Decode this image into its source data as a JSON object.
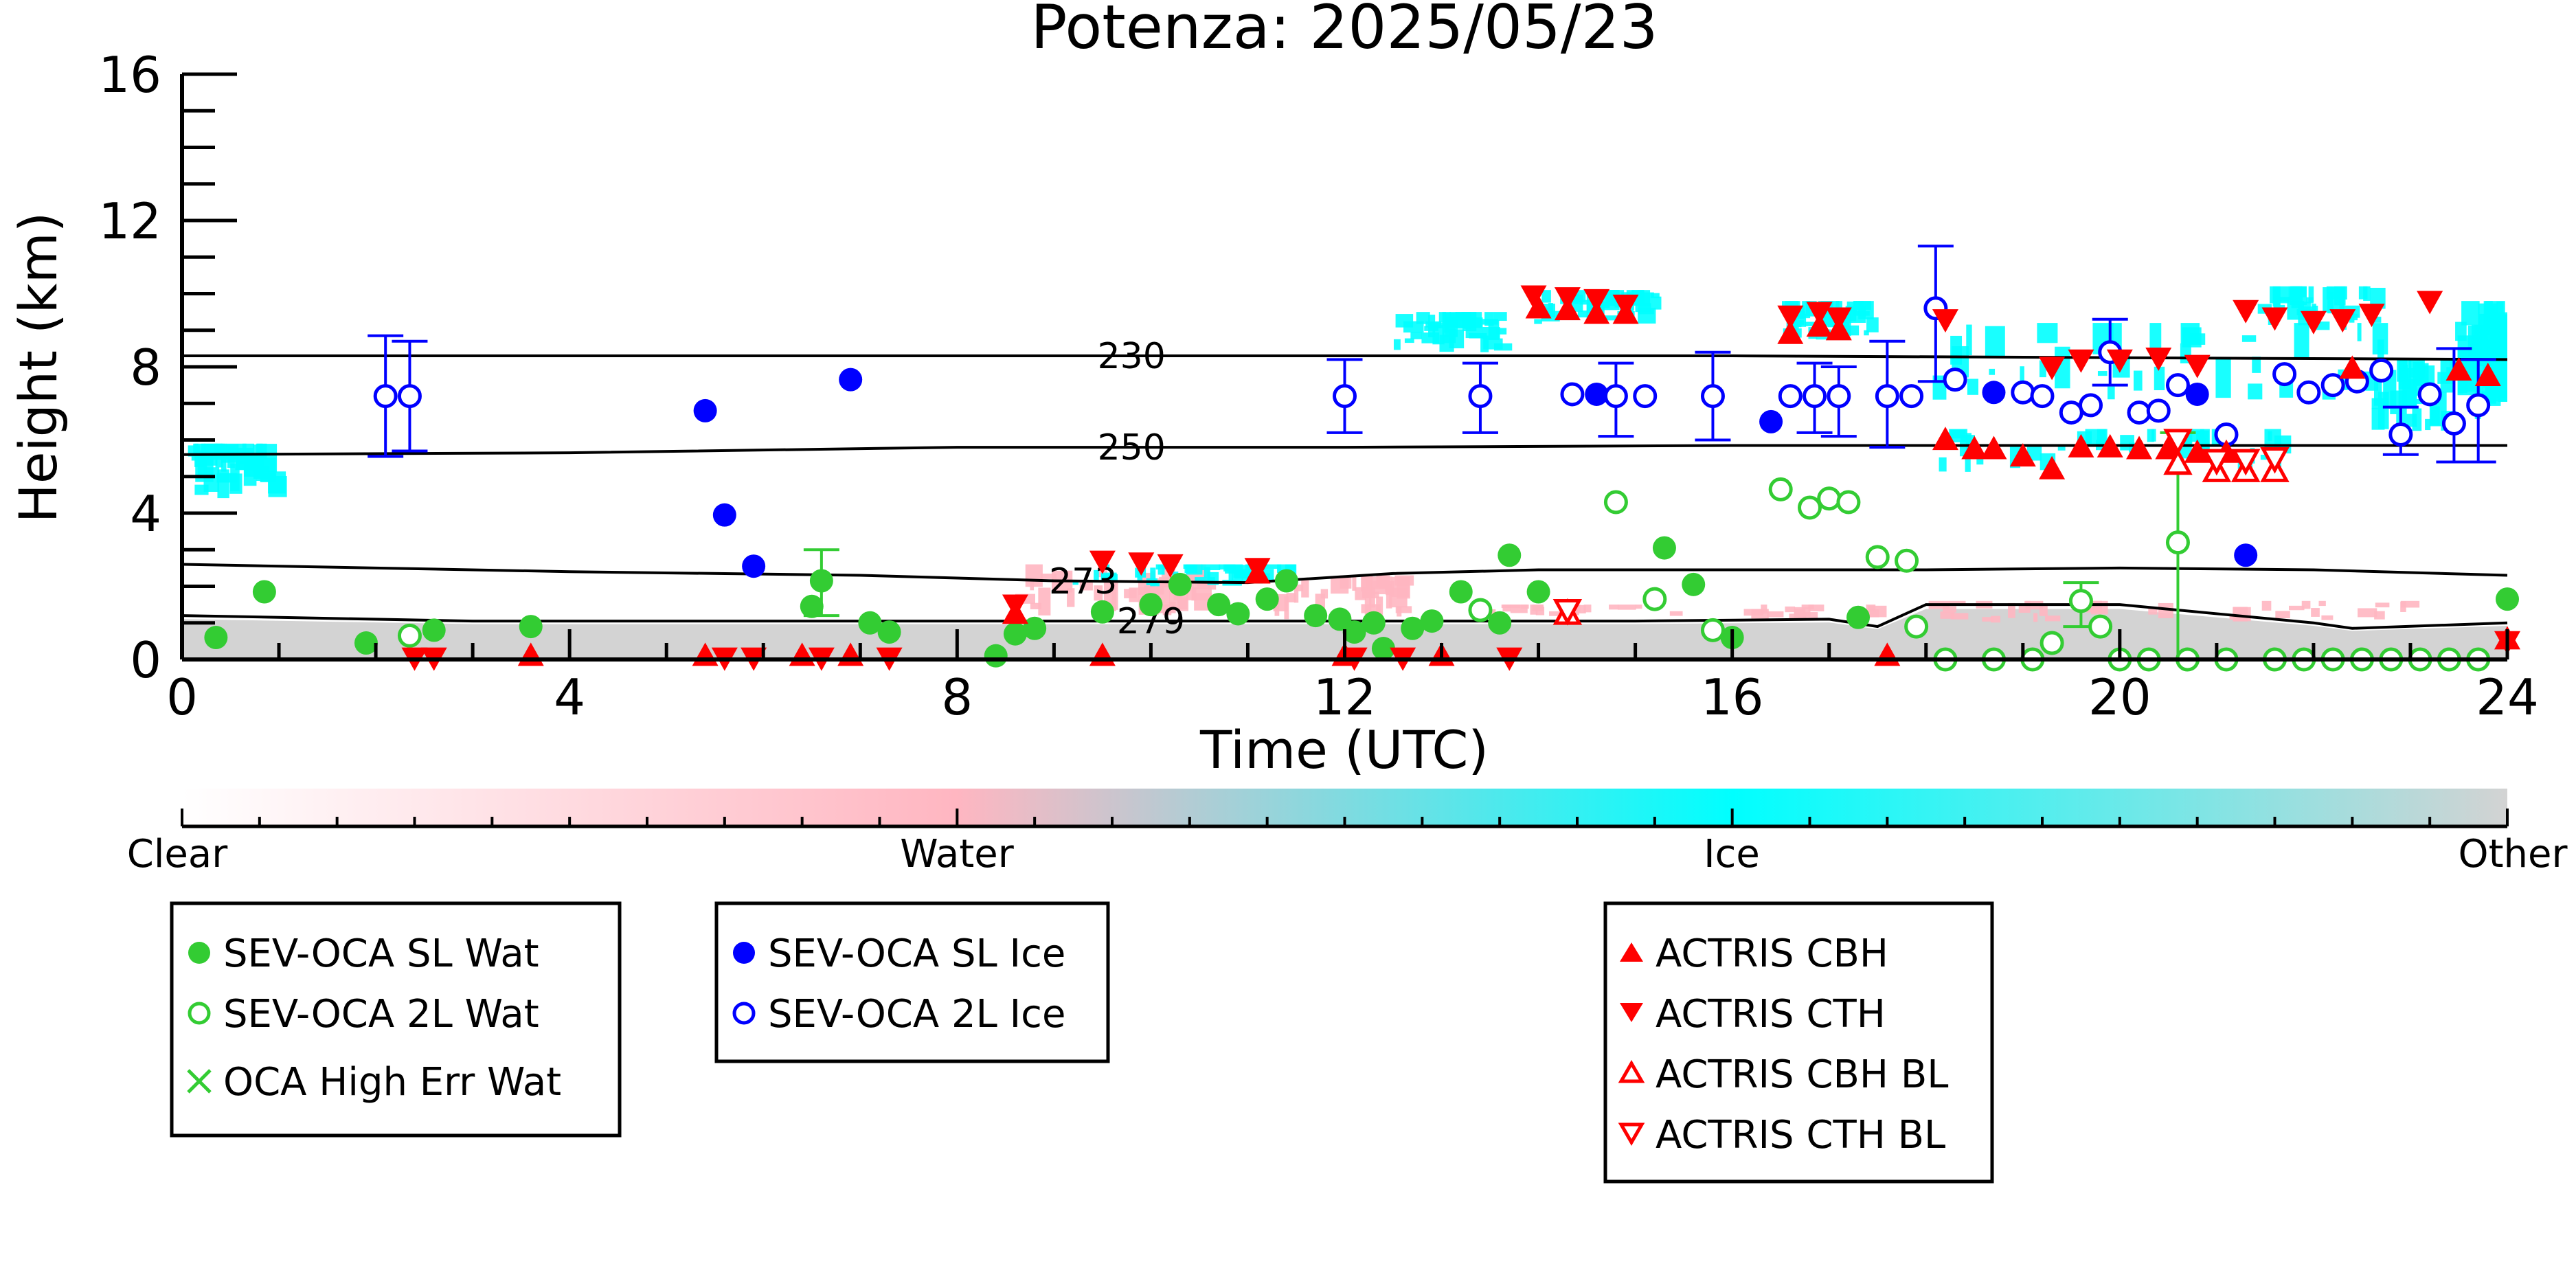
{
  "chart_data": {
    "type": "scatter",
    "title": "Potenza: 2025/05/23",
    "xlabel": "Time (UTC)",
    "ylabel": "Height (km)",
    "xlim": [
      0,
      24
    ],
    "ylim": [
      0,
      16
    ],
    "xticks": [
      "0",
      "4",
      "8",
      "12",
      "16",
      "20",
      "24"
    ],
    "yticks": [
      "0",
      "4",
      "8",
      "12",
      "16"
    ],
    "grid": false,
    "colors": {
      "water": "#ffb6c1",
      "ice": "#00ffff",
      "other": "#d3d3d3",
      "sev_water": "#33cc33",
      "sev_ice": "#0000ff",
      "actris": "#ff0000"
    },
    "colorbar": {
      "labels": [
        "Clear",
        "Water",
        "Ice",
        "Other"
      ],
      "stops": [
        0,
        0.333,
        0.667,
        1
      ]
    },
    "isotherms": [
      {
        "label": "230",
        "points": [
          [
            0,
            8.3
          ],
          [
            6,
            8.3
          ],
          [
            12,
            8.3
          ],
          [
            16,
            8.3
          ],
          [
            20,
            8.25
          ],
          [
            24,
            8.2
          ]
        ]
      },
      {
        "label": "250",
        "points": [
          [
            0,
            5.6
          ],
          [
            4,
            5.65
          ],
          [
            8,
            5.8
          ],
          [
            12,
            5.8
          ],
          [
            16,
            5.85
          ],
          [
            20,
            5.85
          ],
          [
            24,
            5.85
          ]
        ]
      },
      {
        "label": "273",
        "points": [
          [
            0,
            2.6
          ],
          [
            2,
            2.5
          ],
          [
            4,
            2.4
          ],
          [
            7,
            2.3
          ],
          [
            9,
            2.15
          ],
          [
            11,
            2.1
          ],
          [
            12.5,
            2.35
          ],
          [
            14,
            2.45
          ],
          [
            16,
            2.45
          ],
          [
            18,
            2.45
          ],
          [
            20,
            2.5
          ],
          [
            22,
            2.45
          ],
          [
            24,
            2.3
          ]
        ]
      },
      {
        "label": "279",
        "points": [
          [
            0,
            1.2
          ],
          [
            3,
            1.05
          ],
          [
            6,
            1.05
          ],
          [
            9,
            1.05
          ],
          [
            11,
            1.05
          ],
          [
            13,
            1.05
          ],
          [
            15,
            1.05
          ],
          [
            17,
            1.1
          ],
          [
            17.5,
            0.9
          ],
          [
            18,
            1.5
          ],
          [
            20,
            1.5
          ],
          [
            22,
            1.0
          ],
          [
            22.4,
            0.85
          ],
          [
            24,
            1.0
          ]
        ]
      }
    ],
    "series": [
      {
        "name": "SEV-OCA SL Wat",
        "marker": "filled-circle",
        "color": "#33cc33",
        "points": [
          [
            0.35,
            0.6
          ],
          [
            0.85,
            1.85
          ],
          [
            1.9,
            0.45
          ],
          [
            2.6,
            0.8
          ],
          [
            3.6,
            0.9
          ],
          [
            6.5,
            1.45
          ],
          [
            6.6,
            2.15
          ],
          [
            7.1,
            1.0
          ],
          [
            7.3,
            0.75
          ],
          [
            8.4,
            0.1
          ],
          [
            8.6,
            0.7
          ],
          [
            8.8,
            0.85
          ],
          [
            9.5,
            1.3
          ],
          [
            10,
            1.5
          ],
          [
            10.3,
            2.05
          ],
          [
            10.7,
            1.5
          ],
          [
            10.9,
            1.25
          ],
          [
            11.2,
            1.65
          ],
          [
            11.4,
            2.15
          ],
          [
            11.7,
            1.2
          ],
          [
            11.95,
            1.1
          ],
          [
            12.1,
            0.75
          ],
          [
            12.3,
            1.0
          ],
          [
            12.4,
            0.3
          ],
          [
            12.7,
            0.85
          ],
          [
            12.9,
            1.05
          ],
          [
            13.2,
            1.85
          ],
          [
            13.6,
            1.0
          ],
          [
            13.7,
            2.85
          ],
          [
            14.0,
            1.85
          ],
          [
            15.3,
            3.05
          ],
          [
            15.6,
            2.05
          ],
          [
            16.0,
            0.6
          ],
          [
            17.3,
            1.15
          ],
          [
            24,
            1.65
          ]
        ]
      },
      {
        "name": "SEV-OCA 2L Wat",
        "marker": "open-circle",
        "color": "#33cc33",
        "points": [
          [
            2.35,
            0.65
          ],
          [
            13.4,
            1.35
          ],
          [
            14.8,
            4.3
          ],
          [
            15.2,
            1.65
          ],
          [
            15.8,
            0.8
          ],
          [
            16.5,
            4.65
          ],
          [
            16.8,
            4.15
          ],
          [
            17.0,
            4.4
          ],
          [
            17.2,
            4.3
          ],
          [
            17.5,
            2.8
          ],
          [
            17.8,
            2.7
          ],
          [
            17.9,
            0.9
          ],
          [
            18.2,
            0.0
          ],
          [
            18.7,
            0.0
          ],
          [
            19.1,
            0.0
          ],
          [
            19.3,
            0.45
          ],
          [
            19.6,
            1.6
          ],
          [
            19.8,
            0.9
          ],
          [
            20.0,
            0.0
          ],
          [
            20.3,
            0.0
          ],
          [
            20.6,
            3.2
          ],
          [
            20.7,
            0.0
          ],
          [
            21.1,
            0.0
          ],
          [
            21.6,
            0.0
          ],
          [
            21.9,
            0.0
          ],
          [
            22.2,
            0.0
          ],
          [
            22.5,
            0.0
          ],
          [
            22.8,
            0.0
          ],
          [
            23.1,
            0.0
          ],
          [
            23.4,
            0.0
          ],
          [
            23.7,
            0.0
          ]
        ]
      },
      {
        "name": "OCA High Err Wat",
        "marker": "x",
        "color": "#33cc33",
        "points": []
      },
      {
        "name": "SEV-OCA SL Ice",
        "marker": "filled-circle",
        "color": "#0000ff",
        "points": [
          [
            5.4,
            6.8
          ],
          [
            5.6,
            3.95
          ],
          [
            5.9,
            2.55
          ],
          [
            6.9,
            7.65
          ],
          [
            14.6,
            7.25
          ],
          [
            16.4,
            6.5
          ],
          [
            18.7,
            7.3
          ],
          [
            20.8,
            7.25
          ],
          [
            21.3,
            2.85
          ]
        ]
      },
      {
        "name": "SEV-OCA 2L Ice",
        "marker": "open-circle",
        "color": "#0000ff",
        "points": [
          [
            2.1,
            7.2
          ],
          [
            2.35,
            7.2
          ],
          [
            12.0,
            7.2
          ],
          [
            13.4,
            7.2
          ],
          [
            14.35,
            7.25
          ],
          [
            14.8,
            7.2
          ],
          [
            15.1,
            7.2
          ],
          [
            15.8,
            7.2
          ],
          [
            16.6,
            7.2
          ],
          [
            16.85,
            7.2
          ],
          [
            17.1,
            7.2
          ],
          [
            17.6,
            7.2
          ],
          [
            17.85,
            7.2
          ],
          [
            18.1,
            9.6
          ],
          [
            18.3,
            7.65
          ],
          [
            19.0,
            7.3
          ],
          [
            19.2,
            7.2
          ],
          [
            19.5,
            6.75
          ],
          [
            19.7,
            6.95
          ],
          [
            19.9,
            8.4
          ],
          [
            20.2,
            6.75
          ],
          [
            20.4,
            6.8
          ],
          [
            20.6,
            7.5
          ],
          [
            21.1,
            6.15
          ],
          [
            21.7,
            7.8
          ],
          [
            21.95,
            7.3
          ],
          [
            22.2,
            7.5
          ],
          [
            22.45,
            7.6
          ],
          [
            22.7,
            7.9
          ],
          [
            22.9,
            6.15
          ],
          [
            23.2,
            7.25
          ],
          [
            23.45,
            6.45
          ],
          [
            23.7,
            6.95
          ]
        ]
      },
      {
        "name": "ACTRIS CBH",
        "marker": "filled-triangle-up",
        "color": "#ff0000",
        "points": [
          [
            8.6,
            1.2
          ],
          [
            11.1,
            2.3
          ],
          [
            14.0,
            9.55
          ],
          [
            14.3,
            9.5
          ],
          [
            14.6,
            9.4
          ],
          [
            14.9,
            9.4
          ],
          [
            16.6,
            8.85
          ],
          [
            16.9,
            9.05
          ],
          [
            17.1,
            8.95
          ],
          [
            18.2,
            5.95
          ],
          [
            18.5,
            5.7
          ],
          [
            18.7,
            5.7
          ],
          [
            19.0,
            5.5
          ],
          [
            19.3,
            5.15
          ],
          [
            19.6,
            5.75
          ],
          [
            19.9,
            5.75
          ],
          [
            20.2,
            5.7
          ],
          [
            20.5,
            5.7
          ],
          [
            20.8,
            5.6
          ],
          [
            21.1,
            5.6
          ],
          [
            22.4,
            7.9
          ],
          [
            23.5,
            7.85
          ],
          [
            23.8,
            7.7
          ],
          [
            24.0,
            0.5
          ],
          [
            3.6,
            0.05
          ],
          [
            5.4,
            0.05
          ],
          [
            6.4,
            0.05
          ],
          [
            6.9,
            0.05
          ],
          [
            9.5,
            0.05
          ],
          [
            12.0,
            0.05
          ],
          [
            13.0,
            0.05
          ],
          [
            17.6,
            0.05
          ]
        ]
      },
      {
        "name": "ACTRIS CTH",
        "marker": "filled-triangle-down",
        "color": "#ff0000",
        "points": [
          [
            8.6,
            1.55
          ],
          [
            9.5,
            2.75
          ],
          [
            9.9,
            2.7
          ],
          [
            10.2,
            2.65
          ],
          [
            11.1,
            2.55
          ],
          [
            13.95,
            10.0
          ],
          [
            14.3,
            9.95
          ],
          [
            14.6,
            9.9
          ],
          [
            14.9,
            9.75
          ],
          [
            16.6,
            9.45
          ],
          [
            16.9,
            9.55
          ],
          [
            17.1,
            9.4
          ],
          [
            18.2,
            9.35
          ],
          [
            19.3,
            8.05
          ],
          [
            19.6,
            8.25
          ],
          [
            20.0,
            8.25
          ],
          [
            20.4,
            8.3
          ],
          [
            20.8,
            8.1
          ],
          [
            21.3,
            9.6
          ],
          [
            21.6,
            9.4
          ],
          [
            22.0,
            9.3
          ],
          [
            22.3,
            9.35
          ],
          [
            22.6,
            9.5
          ],
          [
            23.2,
            9.85
          ],
          [
            24.0,
            0.55
          ],
          [
            2.4,
            0.1
          ],
          [
            2.6,
            0.1
          ],
          [
            5.6,
            0.1
          ],
          [
            5.9,
            0.1
          ],
          [
            6.6,
            0.1
          ],
          [
            7.3,
            0.1
          ],
          [
            12.1,
            0.1
          ],
          [
            12.6,
            0.1
          ],
          [
            13.7,
            0.1
          ]
        ]
      },
      {
        "name": "ACTRIS CBH BL",
        "marker": "open-triangle-up",
        "color": "#ff0000",
        "points": [
          [
            14.3,
            1.2
          ],
          [
            20.6,
            5.3
          ],
          [
            21.0,
            5.1
          ],
          [
            21.3,
            5.1
          ],
          [
            21.6,
            5.1
          ]
        ]
      },
      {
        "name": "ACTRIS CTH BL",
        "marker": "open-triangle-down",
        "color": "#ff0000",
        "points": [
          [
            14.3,
            1.4
          ],
          [
            20.6,
            6.05
          ],
          [
            21.0,
            5.5
          ],
          [
            21.3,
            5.5
          ],
          [
            21.6,
            5.55
          ]
        ]
      }
    ],
    "error_bars": [
      {
        "x": 2.1,
        "lo": 5.55,
        "hi": 8.85,
        "color": "#0000ff"
      },
      {
        "x": 2.35,
        "lo": 5.7,
        "hi": 8.7,
        "color": "#0000ff"
      },
      {
        "x": 12.0,
        "lo": 6.2,
        "hi": 8.2,
        "color": "#0000ff"
      },
      {
        "x": 13.4,
        "lo": 6.2,
        "hi": 8.1,
        "color": "#0000ff"
      },
      {
        "x": 14.8,
        "lo": 6.1,
        "hi": 8.1,
        "color": "#0000ff"
      },
      {
        "x": 15.8,
        "lo": 6.0,
        "hi": 8.4,
        "color": "#0000ff"
      },
      {
        "x": 16.85,
        "lo": 6.2,
        "hi": 8.1,
        "color": "#0000ff"
      },
      {
        "x": 17.1,
        "lo": 6.1,
        "hi": 8.0,
        "color": "#0000ff"
      },
      {
        "x": 17.6,
        "lo": 5.8,
        "hi": 8.7,
        "color": "#0000ff"
      },
      {
        "x": 18.1,
        "lo": 7.6,
        "hi": 11.3,
        "color": "#0000ff"
      },
      {
        "x": 19.9,
        "lo": 7.5,
        "hi": 9.3,
        "color": "#0000ff"
      },
      {
        "x": 22.9,
        "lo": 5.6,
        "hi": 6.9,
        "color": "#0000ff"
      },
      {
        "x": 23.45,
        "lo": 5.4,
        "hi": 8.5,
        "color": "#0000ff"
      },
      {
        "x": 23.7,
        "lo": 5.4,
        "hi": 8.2,
        "color": "#0000ff"
      },
      {
        "x": 6.6,
        "lo": 1.2,
        "hi": 3.0,
        "color": "#33cc33"
      },
      {
        "x": 19.6,
        "lo": 0.9,
        "hi": 2.1,
        "color": "#33cc33"
      },
      {
        "x": 20.6,
        "lo": 0.0,
        "hi": 6.2,
        "color": "#33cc33"
      }
    ],
    "legends": [
      {
        "entries": [
          "SEV-OCA SL Wat",
          "SEV-OCA 2L Wat",
          "OCA High Err Wat"
        ]
      },
      {
        "entries": [
          "SEV-OCA SL Ice",
          "SEV-OCA 2L Ice"
        ]
      },
      {
        "entries": [
          "ACTRIS CBH",
          "ACTRIS CTH",
          "ACTRIS CBH BL",
          "ACTRIS CTH BL"
        ]
      }
    ]
  }
}
